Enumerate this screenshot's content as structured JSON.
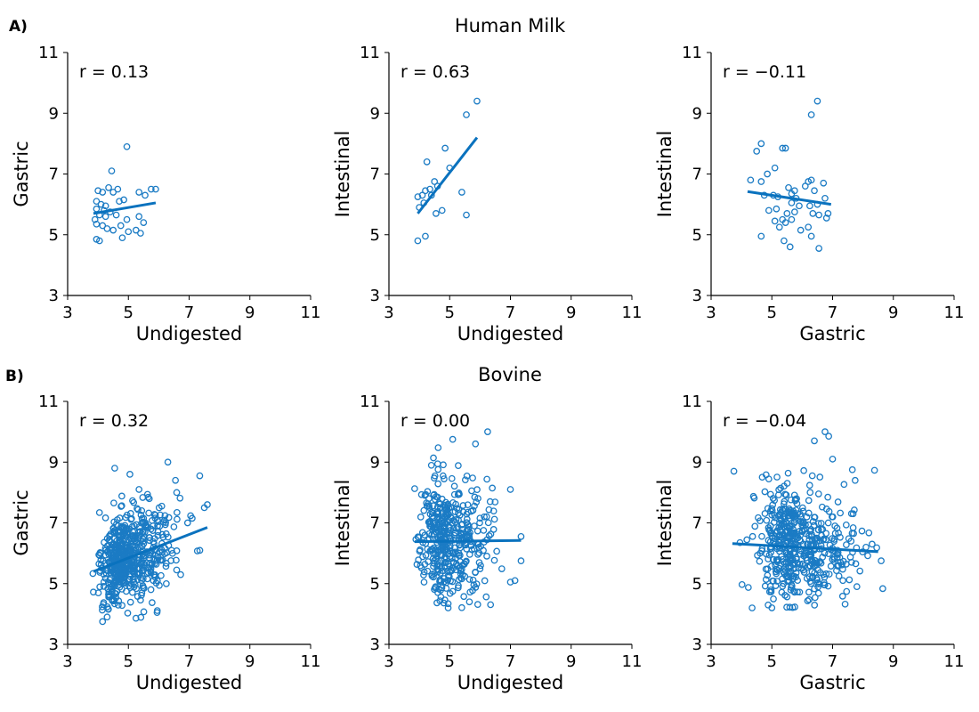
{
  "figure": {
    "rows": [
      {
        "tag": "A)",
        "title": "Human Milk",
        "panels": [
          {
            "xlabel": "Undigested",
            "ylabel": "Gastric",
            "r_label": "r = 0.13",
            "fit": {
              "x": [
                3.85,
                5.9
              ],
              "y": [
                5.7,
                6.05
              ]
            },
            "chart_data": {
              "type": "scatter",
              "xlim": [
                3,
                11
              ],
              "ylim": [
                3,
                11
              ],
              "xticks": [
                3,
                5,
                7,
                9,
                11
              ],
              "yticks": [
                3,
                5,
                7,
                9,
                11
              ],
              "r": 0.13,
              "points": [
                {
                  "x": 4.95,
                  "y": 7.9
                },
                {
                  "x": 4.45,
                  "y": 7.1
                },
                {
                  "x": 4.0,
                  "y": 6.45
                },
                {
                  "x": 4.35,
                  "y": 6.55
                },
                {
                  "x": 4.65,
                  "y": 6.5
                },
                {
                  "x": 4.5,
                  "y": 6.4
                },
                {
                  "x": 4.15,
                  "y": 6.4
                },
                {
                  "x": 5.35,
                  "y": 6.4
                },
                {
                  "x": 5.75,
                  "y": 6.5
                },
                {
                  "x": 5.9,
                  "y": 6.5
                },
                {
                  "x": 3.95,
                  "y": 6.1
                },
                {
                  "x": 4.1,
                  "y": 6.0
                },
                {
                  "x": 4.25,
                  "y": 5.95
                },
                {
                  "x": 4.7,
                  "y": 6.1
                },
                {
                  "x": 4.85,
                  "y": 6.15
                },
                {
                  "x": 5.55,
                  "y": 6.3
                },
                {
                  "x": 3.95,
                  "y": 5.85
                },
                {
                  "x": 4.2,
                  "y": 5.8
                },
                {
                  "x": 4.4,
                  "y": 5.75
                },
                {
                  "x": 4.05,
                  "y": 5.65
                },
                {
                  "x": 4.25,
                  "y": 5.6
                },
                {
                  "x": 3.9,
                  "y": 5.5
                },
                {
                  "x": 4.6,
                  "y": 5.65
                },
                {
                  "x": 4.95,
                  "y": 5.5
                },
                {
                  "x": 5.35,
                  "y": 5.6
                },
                {
                  "x": 5.5,
                  "y": 5.4
                },
                {
                  "x": 4.15,
                  "y": 5.3
                },
                {
                  "x": 3.95,
                  "y": 5.35
                },
                {
                  "x": 4.5,
                  "y": 5.15
                },
                {
                  "x": 4.75,
                  "y": 5.3
                },
                {
                  "x": 5.0,
                  "y": 5.1
                },
                {
                  "x": 5.25,
                  "y": 5.15
                },
                {
                  "x": 5.4,
                  "y": 5.05
                },
                {
                  "x": 4.3,
                  "y": 5.2
                },
                {
                  "x": 3.95,
                  "y": 4.85
                },
                {
                  "x": 4.05,
                  "y": 4.8
                },
                {
                  "x": 4.8,
                  "y": 4.9
                }
              ]
            }
          },
          {
            "xlabel": "Undigested",
            "ylabel": "Intestinal",
            "r_label": "r = 0.63",
            "fit": {
              "x": [
                3.95,
                5.9
              ],
              "y": [
                5.7,
                8.2
              ]
            },
            "chart_data": {
              "type": "scatter",
              "xlim": [
                3,
                11
              ],
              "ylim": [
                3,
                11
              ],
              "xticks": [
                3,
                5,
                7,
                9,
                11
              ],
              "yticks": [
                3,
                5,
                7,
                9,
                11
              ],
              "r": 0.63,
              "points": [
                {
                  "x": 5.9,
                  "y": 9.4
                },
                {
                  "x": 5.55,
                  "y": 8.95
                },
                {
                  "x": 4.85,
                  "y": 7.85
                },
                {
                  "x": 4.25,
                  "y": 7.4
                },
                {
                  "x": 5.0,
                  "y": 7.2
                },
                {
                  "x": 4.5,
                  "y": 6.75
                },
                {
                  "x": 4.6,
                  "y": 6.6
                },
                {
                  "x": 4.2,
                  "y": 6.45
                },
                {
                  "x": 4.35,
                  "y": 6.5
                },
                {
                  "x": 4.1,
                  "y": 6.3
                },
                {
                  "x": 4.4,
                  "y": 6.3
                },
                {
                  "x": 5.4,
                  "y": 6.4
                },
                {
                  "x": 3.95,
                  "y": 6.25
                },
                {
                  "x": 4.15,
                  "y": 6.05
                },
                {
                  "x": 4.0,
                  "y": 5.9
                },
                {
                  "x": 4.75,
                  "y": 5.8
                },
                {
                  "x": 4.55,
                  "y": 5.7
                },
                {
                  "x": 5.55,
                  "y": 5.65
                },
                {
                  "x": 4.2,
                  "y": 4.95
                },
                {
                  "x": 3.95,
                  "y": 4.8
                }
              ]
            }
          },
          {
            "xlabel": "Gastric",
            "ylabel": "Intestinal",
            "r_label": "r = −0.11",
            "fit": {
              "x": [
                4.2,
                6.95
              ],
              "y": [
                6.42,
                6.0
              ]
            },
            "chart_data": {
              "type": "scatter",
              "xlim": [
                3,
                11
              ],
              "ylim": [
                3,
                11
              ],
              "xticks": [
                3,
                5,
                7,
                9,
                11
              ],
              "yticks": [
                3,
                5,
                7,
                9,
                11
              ],
              "r": -0.11,
              "points": [
                {
                  "x": 6.5,
                  "y": 9.4
                },
                {
                  "x": 6.3,
                  "y": 8.95
                },
                {
                  "x": 4.65,
                  "y": 8.0
                },
                {
                  "x": 5.35,
                  "y": 7.85
                },
                {
                  "x": 5.45,
                  "y": 7.85
                },
                {
                  "x": 4.5,
                  "y": 7.75
                },
                {
                  "x": 5.1,
                  "y": 7.2
                },
                {
                  "x": 4.85,
                  "y": 7.0
                },
                {
                  "x": 4.3,
                  "y": 6.8
                },
                {
                  "x": 4.65,
                  "y": 6.75
                },
                {
                  "x": 6.3,
                  "y": 6.8
                },
                {
                  "x": 6.2,
                  "y": 6.75
                },
                {
                  "x": 6.7,
                  "y": 6.7
                },
                {
                  "x": 5.55,
                  "y": 6.55
                },
                {
                  "x": 5.75,
                  "y": 6.45
                },
                {
                  "x": 6.4,
                  "y": 6.45
                },
                {
                  "x": 6.1,
                  "y": 6.6
                },
                {
                  "x": 5.65,
                  "y": 6.35
                },
                {
                  "x": 4.75,
                  "y": 6.3
                },
                {
                  "x": 5.05,
                  "y": 6.3
                },
                {
                  "x": 5.2,
                  "y": 6.25
                },
                {
                  "x": 5.8,
                  "y": 6.2
                },
                {
                  "x": 6.75,
                  "y": 6.2
                },
                {
                  "x": 5.65,
                  "y": 6.05
                },
                {
                  "x": 6.5,
                  "y": 6.0
                },
                {
                  "x": 6.25,
                  "y": 5.95
                },
                {
                  "x": 5.9,
                  "y": 5.95
                },
                {
                  "x": 5.15,
                  "y": 5.85
                },
                {
                  "x": 4.9,
                  "y": 5.8
                },
                {
                  "x": 5.5,
                  "y": 5.7
                },
                {
                  "x": 5.75,
                  "y": 5.75
                },
                {
                  "x": 6.35,
                  "y": 5.7
                },
                {
                  "x": 6.55,
                  "y": 5.65
                },
                {
                  "x": 6.85,
                  "y": 5.7
                },
                {
                  "x": 6.8,
                  "y": 5.55
                },
                {
                  "x": 5.35,
                  "y": 5.5
                },
                {
                  "x": 5.1,
                  "y": 5.45
                },
                {
                  "x": 5.45,
                  "y": 5.4
                },
                {
                  "x": 5.65,
                  "y": 5.5
                },
                {
                  "x": 5.25,
                  "y": 5.25
                },
                {
                  "x": 5.95,
                  "y": 5.15
                },
                {
                  "x": 6.2,
                  "y": 5.25
                },
                {
                  "x": 4.65,
                  "y": 4.95
                },
                {
                  "x": 6.3,
                  "y": 4.95
                },
                {
                  "x": 5.4,
                  "y": 4.8
                },
                {
                  "x": 5.6,
                  "y": 4.6
                },
                {
                  "x": 6.55,
                  "y": 4.55
                }
              ]
            }
          }
        ]
      },
      {
        "tag": "B)",
        "title": "Bovine",
        "panels": [
          {
            "xlabel": "Undigested",
            "ylabel": "Gastric",
            "r_label": "r = 0.32",
            "fit": {
              "x": [
                3.85,
                7.6
              ],
              "y": [
                5.4,
                6.85
              ]
            },
            "chart_data": {
              "type": "scatter",
              "xlim": [
                3,
                11
              ],
              "ylim": [
                3,
                11
              ],
              "xticks": [
                3,
                5,
                7,
                9,
                11
              ],
              "yticks": [
                3,
                5,
                7,
                9,
                11
              ],
              "r": 0.32,
              "cloud": {
                "n": 560,
                "x_mean": 4.9,
                "x_sd": 0.62,
                "x_range": [
                  3.8,
                  7.7
                ],
                "y_mean": 5.8,
                "y_sd": 0.78,
                "y_range": [
                  3.8,
                  9.0
                ],
                "r": 0.32
              },
              "points": [
                {
                  "x": 6.3,
                  "y": 9.0
                },
                {
                  "x": 4.55,
                  "y": 8.8
                },
                {
                  "x": 5.05,
                  "y": 8.6
                },
                {
                  "x": 5.35,
                  "y": 8.1
                },
                {
                  "x": 7.35,
                  "y": 8.55
                },
                {
                  "x": 7.6,
                  "y": 7.6
                },
                {
                  "x": 7.5,
                  "y": 7.5
                },
                {
                  "x": 7.1,
                  "y": 7.15
                },
                {
                  "x": 6.95,
                  "y": 7.0
                },
                {
                  "x": 4.3,
                  "y": 3.9
                },
                {
                  "x": 4.15,
                  "y": 3.75
                },
                {
                  "x": 6.55,
                  "y": 8.4
                }
              ]
            }
          },
          {
            "xlabel": "Undigested",
            "ylabel": "Intestinal",
            "r_label": "r = 0.00",
            "fit": {
              "x": [
                3.85,
                7.35
              ],
              "y": [
                6.38,
                6.42
              ]
            },
            "chart_data": {
              "type": "scatter",
              "xlim": [
                3,
                11
              ],
              "ylim": [
                3,
                11
              ],
              "xticks": [
                3,
                5,
                7,
                9,
                11
              ],
              "yticks": [
                3,
                5,
                7,
                9,
                11
              ],
              "r": 0.0,
              "cloud": {
                "n": 420,
                "x_mean": 4.85,
                "x_sd": 0.6,
                "x_range": [
                  3.8,
                  7.4
                ],
                "y_mean": 6.45,
                "y_sd": 1.05,
                "y_range": [
                  4.2,
                  10.0
                ],
                "r": 0.0
              },
              "points": [
                {
                  "x": 6.25,
                  "y": 10.0
                },
                {
                  "x": 5.1,
                  "y": 9.75
                },
                {
                  "x": 5.85,
                  "y": 9.6
                },
                {
                  "x": 7.0,
                  "y": 8.1
                },
                {
                  "x": 7.35,
                  "y": 6.55
                },
                {
                  "x": 7.35,
                  "y": 5.75
                },
                {
                  "x": 7.0,
                  "y": 5.05
                },
                {
                  "x": 7.15,
                  "y": 5.1
                },
                {
                  "x": 5.65,
                  "y": 4.4
                },
                {
                  "x": 4.95,
                  "y": 4.2
                }
              ]
            }
          },
          {
            "xlabel": "Gastric",
            "ylabel": "Intestinal",
            "r_label": "r = −0.04",
            "fit": {
              "x": [
                3.7,
                8.5
              ],
              "y": [
                6.32,
                6.05
              ]
            },
            "chart_data": {
              "type": "scatter",
              "xlim": [
                3,
                11
              ],
              "ylim": [
                3,
                11
              ],
              "xticks": [
                3,
                5,
                7,
                9,
                11
              ],
              "yticks": [
                3,
                5,
                7,
                9,
                11
              ],
              "r": -0.04,
              "cloud": {
                "n": 500,
                "x_mean": 5.8,
                "x_sd": 0.8,
                "x_range": [
                  4.0,
                  8.7
                ],
                "y_mean": 6.3,
                "y_sd": 1.0,
                "y_range": [
                  4.2,
                  10.0
                ],
                "r": -0.04
              },
              "points": [
                {
                  "x": 6.75,
                  "y": 10.0
                },
                {
                  "x": 6.4,
                  "y": 9.7
                },
                {
                  "x": 3.75,
                  "y": 8.7
                },
                {
                  "x": 7.65,
                  "y": 8.75
                },
                {
                  "x": 7.0,
                  "y": 9.1
                },
                {
                  "x": 8.6,
                  "y": 5.75
                },
                {
                  "x": 8.3,
                  "y": 6.3
                },
                {
                  "x": 8.1,
                  "y": 6.2
                },
                {
                  "x": 4.35,
                  "y": 4.2
                },
                {
                  "x": 3.95,
                  "y": 6.35
                },
                {
                  "x": 7.8,
                  "y": 4.9
                }
              ]
            }
          }
        ]
      }
    ]
  }
}
